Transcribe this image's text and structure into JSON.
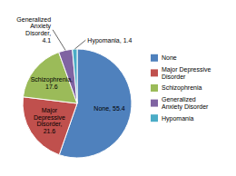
{
  "chart_data": {
    "type": "pie",
    "categories": [
      "None",
      "Major Depressive\nDisorder",
      "Schizophrenia",
      "Generalized\nAnxiety Disorder",
      "Hypomania"
    ],
    "values": [
      55.4,
      21.6,
      17.6,
      4.1,
      1.4
    ],
    "colors": [
      "#4f81bd",
      "#c0504d",
      "#9bbb59",
      "#8064a2",
      "#4bacc6"
    ],
    "data_labels": true,
    "value_labels": [
      "None, 55.4",
      "Major\nDepressive\nDisorder,\n21.6",
      "Schizophrenia,\n17.6",
      "Generalized\nAnxiety\nDisorder,\n4.1",
      "Hypomania, 1.4"
    ],
    "legend": "right"
  }
}
